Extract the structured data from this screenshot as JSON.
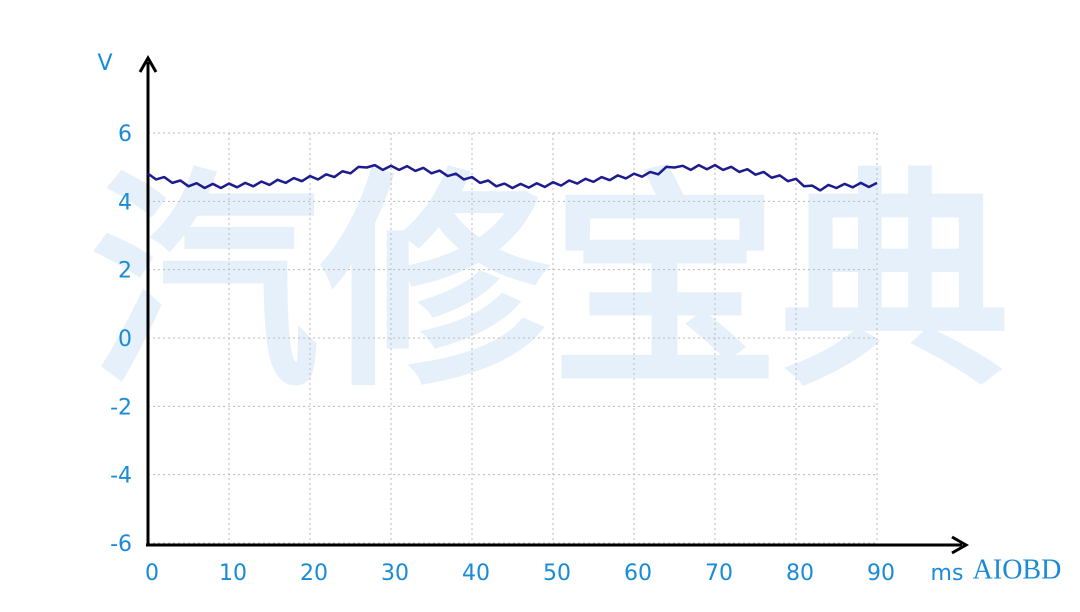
{
  "chart_data": {
    "type": "line",
    "y_label": "V",
    "x_label": "ms",
    "watermark": "汽修宝典",
    "brand": "AIOBD",
    "x": [
      0,
      1,
      2,
      3,
      4,
      5,
      6,
      7,
      8,
      9,
      10,
      11,
      12,
      13,
      14,
      15,
      16,
      17,
      18,
      19,
      20,
      21,
      22,
      23,
      24,
      25,
      26,
      27,
      28,
      29,
      30,
      31,
      32,
      33,
      34,
      35,
      36,
      37,
      38,
      39,
      40,
      41,
      42,
      43,
      44,
      45,
      46,
      47,
      48,
      49,
      50,
      51,
      52,
      53,
      54,
      55,
      56,
      57,
      58,
      59,
      60,
      61,
      62,
      63,
      64,
      65,
      66,
      67,
      68,
      69,
      70,
      71,
      72,
      73,
      74,
      75,
      76,
      77,
      78,
      79,
      80,
      81,
      82,
      83,
      84,
      85,
      86,
      87,
      88,
      89,
      90
    ],
    "values": [
      4.81,
      4.64,
      4.71,
      4.54,
      4.61,
      4.44,
      4.53,
      4.39,
      4.51,
      4.39,
      4.52,
      4.41,
      4.54,
      4.44,
      4.58,
      4.48,
      4.63,
      4.54,
      4.68,
      4.59,
      4.74,
      4.64,
      4.79,
      4.71,
      4.88,
      4.82,
      5.01,
      4.99,
      5.06,
      4.92,
      5.04,
      4.92,
      5.03,
      4.89,
      4.98,
      4.82,
      4.9,
      4.74,
      4.81,
      4.64,
      4.71,
      4.54,
      4.61,
      4.44,
      4.52,
      4.39,
      4.51,
      4.4,
      4.53,
      4.42,
      4.56,
      4.46,
      4.61,
      4.52,
      4.66,
      4.57,
      4.71,
      4.62,
      4.76,
      4.67,
      4.81,
      4.72,
      4.86,
      4.79,
      5.01,
      4.99,
      5.04,
      4.92,
      5.06,
      4.94,
      5.06,
      4.92,
      5.01,
      4.86,
      4.94,
      4.78,
      4.86,
      4.69,
      4.76,
      4.59,
      4.66,
      4.44,
      4.46,
      4.32,
      4.48,
      4.39,
      4.51,
      4.41,
      4.54,
      4.42,
      4.54
    ],
    "color": "#1c1c8e",
    "xlim": [
      0,
      90
    ],
    "xticks": [
      0,
      10,
      20,
      30,
      40,
      50,
      60,
      70,
      80,
      90
    ],
    "ylim": [
      -6,
      6
    ],
    "yticks": [
      -6,
      -4,
      -2,
      0,
      2,
      4,
      6
    ],
    "grid": true
  }
}
